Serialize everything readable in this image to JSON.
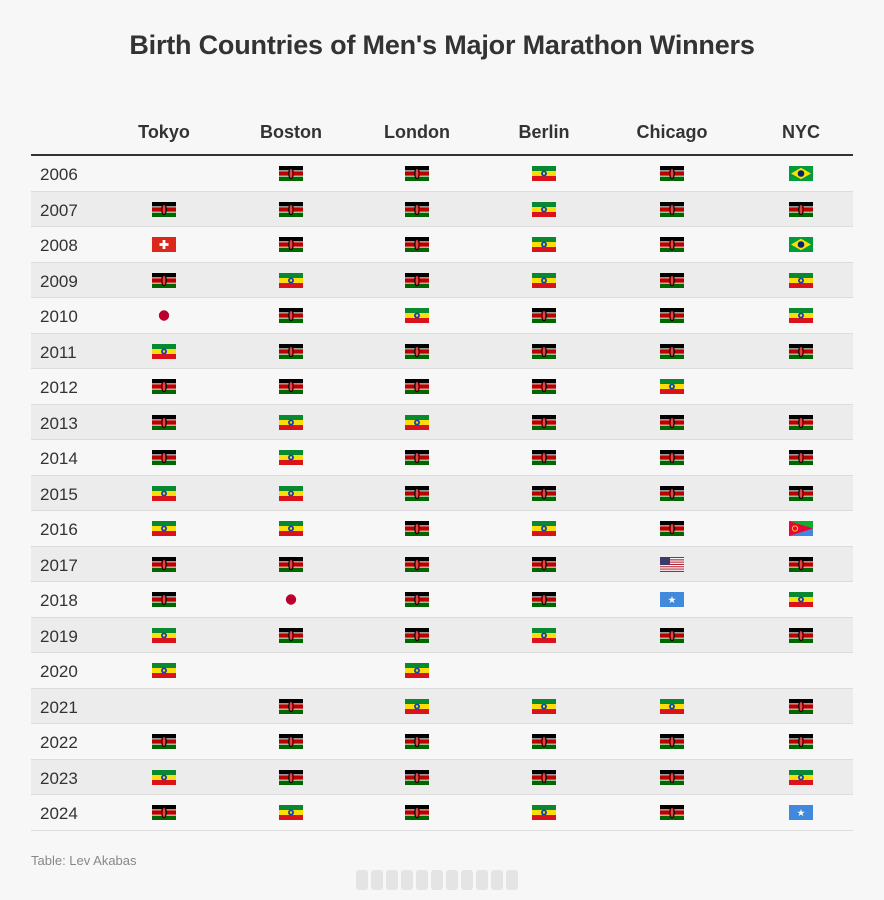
{
  "chart_data": {
    "type": "table",
    "title": "Birth Countries of Men's Major Marathon Winners",
    "columns": [
      "Tokyo",
      "Boston",
      "London",
      "Berlin",
      "Chicago",
      "NYC"
    ],
    "rows": [
      {
        "year": "2006",
        "values": [
          "",
          "kenya",
          "kenya",
          "ethiopia",
          "kenya",
          "brazil"
        ]
      },
      {
        "year": "2007",
        "values": [
          "kenya",
          "kenya",
          "kenya",
          "ethiopia",
          "kenya",
          "kenya"
        ]
      },
      {
        "year": "2008",
        "values": [
          "switzerland",
          "kenya",
          "kenya",
          "ethiopia",
          "kenya",
          "brazil"
        ]
      },
      {
        "year": "2009",
        "values": [
          "kenya",
          "ethiopia",
          "kenya",
          "ethiopia",
          "kenya",
          "ethiopia"
        ]
      },
      {
        "year": "2010",
        "values": [
          "japan",
          "kenya",
          "ethiopia",
          "kenya",
          "kenya",
          "ethiopia"
        ]
      },
      {
        "year": "2011",
        "values": [
          "ethiopia",
          "kenya",
          "kenya",
          "kenya",
          "kenya",
          "kenya"
        ]
      },
      {
        "year": "2012",
        "values": [
          "kenya",
          "kenya",
          "kenya",
          "kenya",
          "ethiopia",
          ""
        ]
      },
      {
        "year": "2013",
        "values": [
          "kenya",
          "ethiopia",
          "ethiopia",
          "kenya",
          "kenya",
          "kenya"
        ]
      },
      {
        "year": "2014",
        "values": [
          "kenya",
          "ethiopia",
          "kenya",
          "kenya",
          "kenya",
          "kenya"
        ]
      },
      {
        "year": "2015",
        "values": [
          "ethiopia",
          "ethiopia",
          "kenya",
          "kenya",
          "kenya",
          "kenya"
        ]
      },
      {
        "year": "2016",
        "values": [
          "ethiopia",
          "ethiopia",
          "kenya",
          "ethiopia",
          "kenya",
          "eritrea"
        ]
      },
      {
        "year": "2017",
        "values": [
          "kenya",
          "kenya",
          "kenya",
          "kenya",
          "usa",
          "kenya"
        ]
      },
      {
        "year": "2018",
        "values": [
          "kenya",
          "japan",
          "kenya",
          "kenya",
          "somalia",
          "ethiopia"
        ]
      },
      {
        "year": "2019",
        "values": [
          "ethiopia",
          "kenya",
          "kenya",
          "ethiopia",
          "kenya",
          "kenya"
        ]
      },
      {
        "year": "2020",
        "values": [
          "ethiopia",
          "",
          "ethiopia",
          "",
          "",
          ""
        ]
      },
      {
        "year": "2021",
        "values": [
          "",
          "kenya",
          "ethiopia",
          "ethiopia",
          "ethiopia",
          "kenya"
        ]
      },
      {
        "year": "2022",
        "values": [
          "kenya",
          "kenya",
          "kenya",
          "kenya",
          "kenya",
          "kenya"
        ]
      },
      {
        "year": "2023",
        "values": [
          "ethiopia",
          "kenya",
          "kenya",
          "kenya",
          "kenya",
          "ethiopia"
        ]
      },
      {
        "year": "2024",
        "values": [
          "kenya",
          "ethiopia",
          "kenya",
          "ethiopia",
          "kenya",
          "somalia"
        ]
      }
    ]
  },
  "source": "Table: Lev Akabas",
  "flag_colors": {
    "kenya": [
      "#000000",
      "#bb0000",
      "#006600",
      "#ffffff"
    ],
    "ethiopia": [
      "#078930",
      "#fcdd09",
      "#da121a",
      "#0f47af"
    ],
    "brazil": [
      "#009c3b",
      "#ffdf00",
      "#002776"
    ],
    "switzerland": [
      "#da291c",
      "#ffffff"
    ],
    "japan": [
      "#bc002d",
      "#ffffff"
    ],
    "eritrea": [
      "#4189dd",
      "#ea0437",
      "#12ad2b",
      "#ffc726"
    ],
    "usa": [
      "#b22234",
      "#ffffff",
      "#3c3b6e"
    ],
    "somalia": [
      "#4189dd",
      "#ffffff"
    ]
  }
}
